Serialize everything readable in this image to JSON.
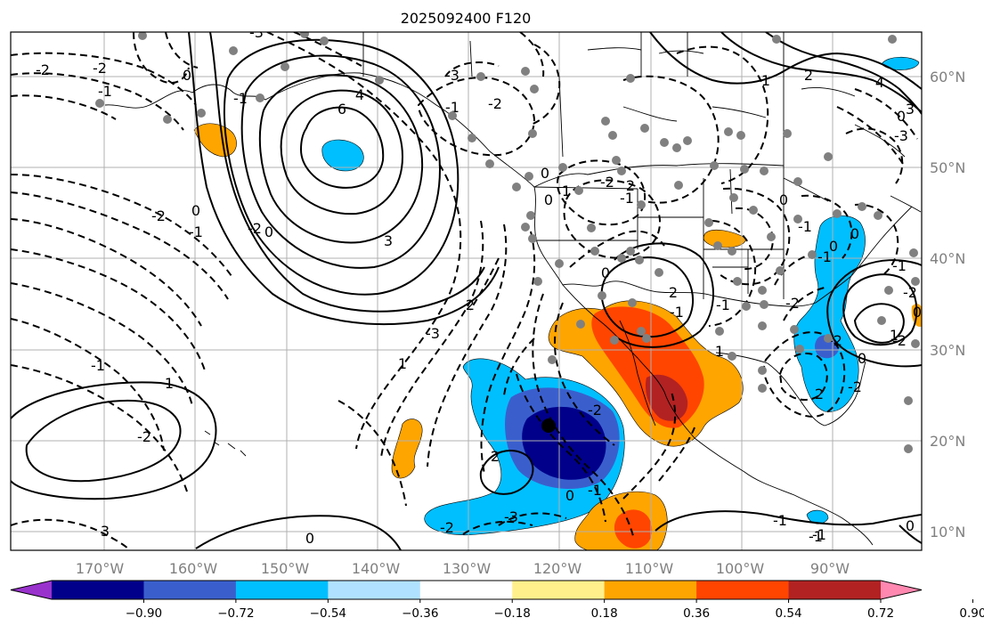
{
  "title": "2025092400 F120",
  "map": {
    "lon_ticks": [
      "170°W",
      "160°W",
      "150°W",
      "140°W",
      "130°W",
      "120°W",
      "110°W",
      "100°W",
      "90°W"
    ],
    "lat_ticks": [
      "60°N",
      "50°N",
      "40°N",
      "30°N",
      "20°N",
      "10°N"
    ],
    "gridlines": true,
    "contour_labels": [
      "-3",
      "-2",
      "-2",
      "-1",
      "6",
      "4",
      "3",
      "-1",
      "-2",
      "-3",
      "-2",
      "-1",
      "0",
      "-2",
      "0",
      "-1",
      "0",
      "-1",
      "1",
      "-2",
      "1",
      "2",
      "-3",
      "0",
      "1",
      "-2",
      "2",
      "0",
      "2",
      "-1",
      "-1",
      "-2",
      "0",
      "1",
      "2",
      "0",
      "-1",
      "-1",
      "0",
      "-1",
      "0",
      "-1",
      "-2",
      "0",
      "-2",
      "-2",
      "1",
      "2",
      "4",
      "3",
      "0",
      "-3",
      "-2",
      "2",
      "-2",
      "-1",
      "0",
      "-3",
      "-2",
      "3",
      "0",
      "-1",
      "0",
      "-1",
      "1",
      "0",
      "-1"
    ]
  },
  "colorbar": {
    "ticks": [
      "−0.90",
      "−0.72",
      "−0.54",
      "−0.36",
      "−0.18",
      "0.18",
      "0.36",
      "0.54",
      "0.72",
      "0.90"
    ],
    "colors": [
      "#9932cc",
      "#00008b",
      "#3a5fcd",
      "#00bfff",
      "#b0e2ff",
      "#ffffff",
      "#fff08c",
      "#ffa500",
      "#ff4500",
      "#b22222",
      "#ff88b0"
    ]
  }
}
